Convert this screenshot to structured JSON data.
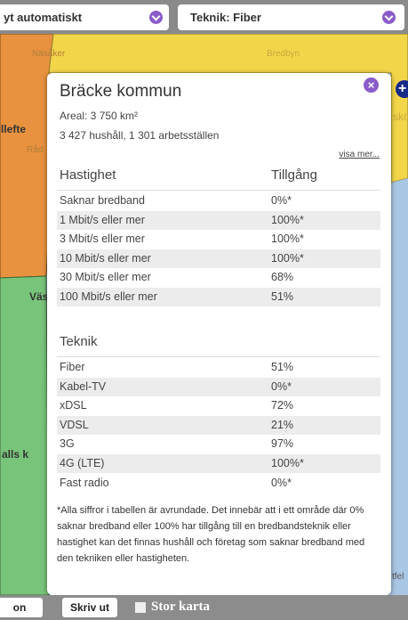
{
  "toolbar": {
    "left_select": "yt automatiskt",
    "right_select": "Teknik: Fiber"
  },
  "map_labels": [
    "Näsåker",
    "Bredbyn",
    "llefte",
    "Råd",
    "skö",
    "Väs",
    "alls k",
    "tfel"
  ],
  "popup": {
    "title": "Bräcke kommun",
    "area": "Areal: 3 750 km²",
    "counts": "3 427 hushåll, 1 301 arbetsställen",
    "more_link": "visa mer...",
    "speed_table": {
      "headers": [
        "Hastighet",
        "Tillgång"
      ],
      "rows": [
        [
          "Saknar bredband",
          "0%*"
        ],
        [
          "1 Mbit/s eller mer",
          "100%*"
        ],
        [
          "3 Mbit/s eller mer",
          "100%*"
        ],
        [
          "10 Mbit/s eller mer",
          "100%*"
        ],
        [
          "30 Mbit/s eller mer",
          "68%"
        ],
        [
          "100 Mbit/s eller mer",
          "51%"
        ]
      ]
    },
    "tech_table": {
      "heading": "Teknik",
      "rows": [
        [
          "Fiber",
          "51%"
        ],
        [
          "Kabel-TV",
          "0%*"
        ],
        [
          "xDSL",
          "72%"
        ],
        [
          "VDSL",
          "21%"
        ],
        [
          "3G",
          "97%"
        ],
        [
          "4G (LTE)",
          "100%*"
        ],
        [
          "Fast radio",
          "0%*"
        ]
      ]
    },
    "footnote": "*Alla siffror i tabellen är avrundade. Det innebär att i ett område där 0% saknar bredband eller 100% har tillgång till en bredbandsteknik eller hastighet kan det finnas hushåll och företag som saknar bredband med den tekniken eller hastigheten."
  },
  "footer": {
    "left_button": "on",
    "print_button": "Skriv ut",
    "big_map": "Stor karta"
  }
}
